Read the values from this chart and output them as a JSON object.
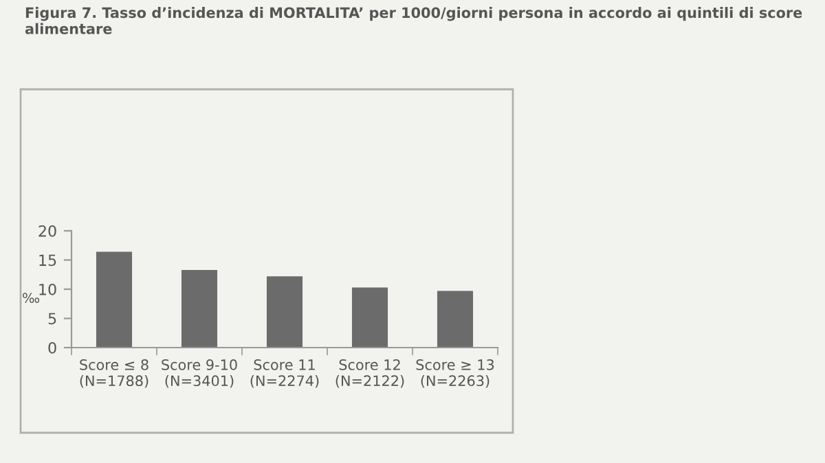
{
  "chart_data": {
    "type": "bar",
    "title": "Figura 7. Tasso d’incidenza di MORTALITA’ per 1000/giorni persona in accordo ai quintili di score alimentare",
    "ylabel": "‰",
    "categories": [
      "Score ≤ 8\n(N=1788)",
      "Score 9-10\n(N=3401)",
      "Score 11\n(N=2274)",
      "Score 12\n(N=2122)",
      "Score ≥ 13\n(N=2263)"
    ],
    "values": [
      16.4,
      13.3,
      12.2,
      10.3,
      9.7
    ],
    "color": "#6b6b6b",
    "ylim": [
      0,
      20
    ],
    "yticks": [
      0,
      5,
      10,
      15,
      20
    ],
    "grid": false,
    "legend": false
  }
}
